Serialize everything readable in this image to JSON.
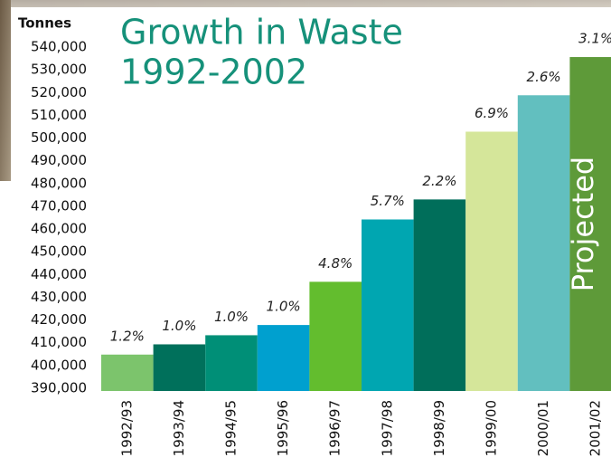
{
  "chart_data": {
    "type": "bar",
    "title": [
      "Growth in Waste",
      "1992-2002"
    ],
    "y_axis_label": "Tonnes",
    "categories": [
      "1992/93",
      "1993/94",
      "1994/95",
      "1995/96",
      "1996/97",
      "1997/98",
      "1998/99",
      "1999/00",
      "2000/01",
      "2001/02"
    ],
    "values": [
      406000,
      410500,
      414500,
      419000,
      438000,
      465400,
      474200,
      504000,
      520000,
      536800
    ],
    "colors": [
      "#7cc46c",
      "#00705b",
      "#008f77",
      "#00a0cf",
      "#63bd2e",
      "#00a6b1",
      "#006e5a",
      "#d5e69a",
      "#62bfbf",
      "#5e9a39"
    ],
    "growth_labels": [
      "1.2%",
      "1.0%",
      "1.0%",
      "1.0%",
      "4.8%",
      "5.7%",
      "2.2%",
      "6.9%",
      "2.6%",
      "3.1%"
    ],
    "projected_label": "Projected",
    "ylim": [
      390000,
      540000
    ],
    "yticks": [
      {
        "value": 390000,
        "label": "390,000"
      },
      {
        "value": 400000,
        "label": "400,000"
      },
      {
        "value": 410000,
        "label": "410,000"
      },
      {
        "value": 420000,
        "label": "420,000"
      },
      {
        "value": 430000,
        "label": "430,000"
      },
      {
        "value": 440000,
        "label": "440,000"
      },
      {
        "value": 450000,
        "label": "450,000"
      },
      {
        "value": 460000,
        "label": "460,000"
      },
      {
        "value": 470000,
        "label": "470,000"
      },
      {
        "value": 480000,
        "label": "480,000"
      },
      {
        "value": 490000,
        "label": "490,000"
      },
      {
        "value": 500000,
        "label": "500,000"
      },
      {
        "value": 510000,
        "label": "510,000"
      },
      {
        "value": 520000,
        "label": "520,000"
      },
      {
        "value": 530000,
        "label": "530,000"
      },
      {
        "value": 540000,
        "label": "540,000"
      }
    ],
    "grid": false
  }
}
